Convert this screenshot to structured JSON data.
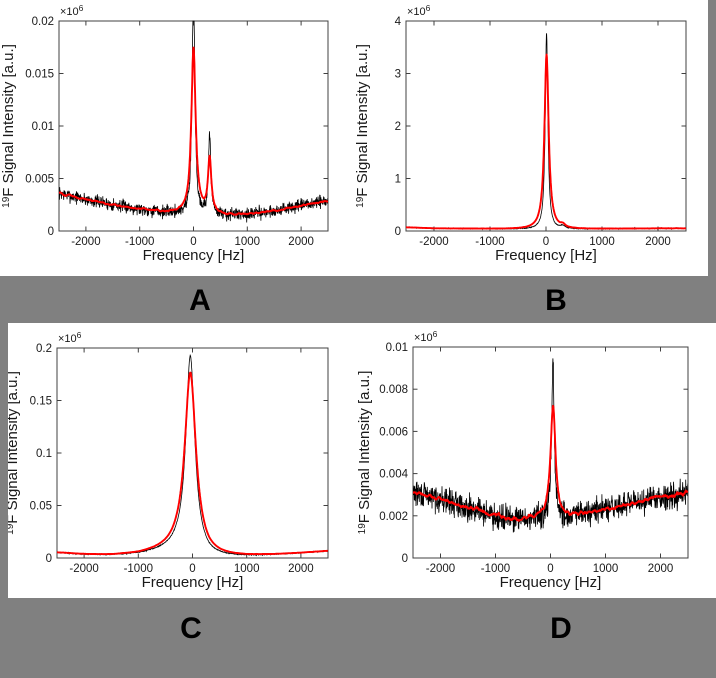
{
  "figure": {
    "background_color": "#808080",
    "panel_color": "#ffffff",
    "axis_color": "#404040",
    "curve_colors": {
      "raw": "#000000",
      "smoothed": "#ff0000"
    },
    "labels": [
      {
        "text": "A"
      },
      {
        "text": "B"
      },
      {
        "text": "C"
      },
      {
        "text": "D"
      }
    ]
  },
  "chart_data": [
    {
      "id": "A",
      "type": "line",
      "xlabel": "Frequency [Hz]",
      "ylabel": {
        "sup": "19",
        "text": "F Signal Intensity [a.u.]"
      },
      "exponent": {
        "base": "×10",
        "sup": "6"
      },
      "xlim": [
        -2500,
        2500
      ],
      "ylim": [
        0,
        0.02
      ],
      "xticks": [
        -2000,
        -1000,
        0,
        1000,
        2000
      ],
      "xticklabels": [
        "-2000",
        "-1000",
        "0",
        "1000",
        "2000"
      ],
      "yticks": [
        0,
        0.005,
        0.01,
        0.015,
        0.02
      ],
      "yticklabels": [
        "0",
        "0.005",
        "0.01",
        "0.015",
        "0.02"
      ],
      "series": [
        {
          "name": "raw spectrum",
          "color": "#000000"
        },
        {
          "name": "smoothed spectrum",
          "color": "#ff0000"
        }
      ],
      "model": {
        "seed": 7,
        "baseline": [
          [
            -2500,
            0.0036
          ],
          [
            -2000,
            0.003
          ],
          [
            -1500,
            0.0025
          ],
          [
            -1000,
            0.0021
          ],
          [
            -600,
            0.0018
          ],
          [
            -200,
            0.0017
          ],
          [
            200,
            0.0016
          ],
          [
            600,
            0.0015
          ],
          [
            1000,
            0.0016
          ],
          [
            1500,
            0.0019
          ],
          [
            2000,
            0.0024
          ],
          [
            2500,
            0.0029
          ]
        ],
        "peaks": [
          {
            "x": 0,
            "red_h": 0.0158,
            "red_w": 48,
            "black_h": 0.0215,
            "black_w": 30
          },
          {
            "x": 300,
            "red_h": 0.0052,
            "red_w": 38,
            "black_h": 0.0072,
            "black_w": 28
          }
        ],
        "noise": {
          "black": 0.0009,
          "red": 0.0002
        }
      }
    },
    {
      "id": "B",
      "type": "line",
      "xlabel": "Frequency [Hz]",
      "ylabel": {
        "sup": "19",
        "text": "F Signal Intensity [a.u.]"
      },
      "exponent": {
        "base": "×10",
        "sup": "6"
      },
      "xlim": [
        -2500,
        2500
      ],
      "ylim": [
        0,
        4
      ],
      "xticks": [
        -2000,
        -1000,
        0,
        1000,
        2000
      ],
      "xticklabels": [
        "-2000",
        "-1000",
        "0",
        "1000",
        "2000"
      ],
      "yticks": [
        0,
        1,
        2,
        3,
        4
      ],
      "yticklabels": [
        "0",
        "1",
        "2",
        "3",
        "4"
      ],
      "series": [
        {
          "name": "raw spectrum",
          "color": "#000000"
        },
        {
          "name": "smoothed spectrum",
          "color": "#ff0000"
        }
      ],
      "model": {
        "seed": 11,
        "baseline": [
          [
            -2500,
            0.07
          ],
          [
            -2000,
            0.05
          ],
          [
            -1500,
            0.045
          ],
          [
            -1000,
            0.04
          ],
          [
            -500,
            0.035
          ],
          [
            0,
            0.03
          ],
          [
            500,
            0.035
          ],
          [
            1000,
            0.04
          ],
          [
            1500,
            0.045
          ],
          [
            2000,
            0.05
          ],
          [
            2500,
            0.05
          ]
        ],
        "peaks": [
          {
            "x": 10,
            "red_h": 3.33,
            "red_w": 45,
            "black_h": 3.75,
            "black_w": 28
          },
          {
            "x": 300,
            "red_h": 0.05,
            "red_w": 50,
            "black_h": 0.05,
            "black_w": 50
          }
        ],
        "noise": {
          "black": 0.012,
          "red": 0.004
        }
      }
    },
    {
      "id": "C",
      "type": "line",
      "xlabel": "Frequency [Hz]",
      "ylabel": {
        "sup": "19",
        "text": "F Signal Intensity [a.u.]"
      },
      "exponent": {
        "base": "×10",
        "sup": "6"
      },
      "xlim": [
        -2500,
        2500
      ],
      "ylim": [
        0,
        0.2
      ],
      "xticks": [
        -2000,
        -1000,
        0,
        1000,
        2000
      ],
      "xticklabels": [
        "-2000",
        "-1000",
        "0",
        "1000",
        "2000"
      ],
      "yticks": [
        0,
        0.05,
        0.1,
        0.15,
        0.2
      ],
      "yticklabels": [
        "0",
        "0.05",
        "0.1",
        "0.15",
        "0.2"
      ],
      "series": [
        {
          "name": "raw spectrum",
          "color": "#000000"
        },
        {
          "name": "smoothed spectrum",
          "color": "#ff0000"
        }
      ],
      "model": {
        "seed": 13,
        "baseline": [
          [
            -2500,
            0.005
          ],
          [
            -2000,
            0.0032
          ],
          [
            -1500,
            0.0025
          ],
          [
            -1000,
            0.0035
          ],
          [
            -600,
            0.006
          ],
          [
            -300,
            0.008
          ],
          [
            300,
            0.0005
          ],
          [
            600,
            0.0008
          ],
          [
            1000,
            0.0015
          ],
          [
            1500,
            0.0028
          ],
          [
            2000,
            0.0045
          ],
          [
            2500,
            0.0065
          ]
        ],
        "peaks": [
          {
            "x": -40,
            "red_h": 0.172,
            "red_w": 125,
            "black_h": 0.188,
            "black_w": 100
          }
        ],
        "noise": {
          "black": 0.0006,
          "red": 0.0002
        }
      }
    },
    {
      "id": "D",
      "type": "line",
      "xlabel": "Frequency [Hz]",
      "ylabel": {
        "sup": "19",
        "text": "F Signal Intensity [a.u.]"
      },
      "exponent": {
        "base": "×10",
        "sup": "6"
      },
      "xlim": [
        -2500,
        2500
      ],
      "ylim": [
        0,
        0.01
      ],
      "xticks": [
        -2000,
        -1000,
        0,
        1000,
        2000
      ],
      "xticklabels": [
        "-2000",
        "-1000",
        "0",
        "1000",
        "2000"
      ],
      "yticks": [
        0,
        0.002,
        0.004,
        0.006,
        0.008,
        0.01
      ],
      "yticklabels": [
        "0",
        "0.002",
        "0.004",
        "0.006",
        "0.008",
        "0.01"
      ],
      "series": [
        {
          "name": "raw spectrum",
          "color": "#000000"
        },
        {
          "name": "smoothed spectrum",
          "color": "#ff0000"
        }
      ],
      "model": {
        "seed": 29,
        "baseline": [
          [
            -2500,
            0.0031
          ],
          [
            -2000,
            0.0028
          ],
          [
            -1500,
            0.0024
          ],
          [
            -1000,
            0.002
          ],
          [
            -600,
            0.0018
          ],
          [
            -200,
            0.0019
          ],
          [
            200,
            0.0019
          ],
          [
            600,
            0.0021
          ],
          [
            1000,
            0.0023
          ],
          [
            1500,
            0.0026
          ],
          [
            2000,
            0.0029
          ],
          [
            2500,
            0.0031
          ]
        ],
        "peaks": [
          {
            "x": 45,
            "red_h": 0.0053,
            "red_w": 55,
            "black_h": 0.0072,
            "black_w": 30
          }
        ],
        "noise": {
          "black": 0.0009,
          "red": 0.00025
        }
      }
    }
  ]
}
